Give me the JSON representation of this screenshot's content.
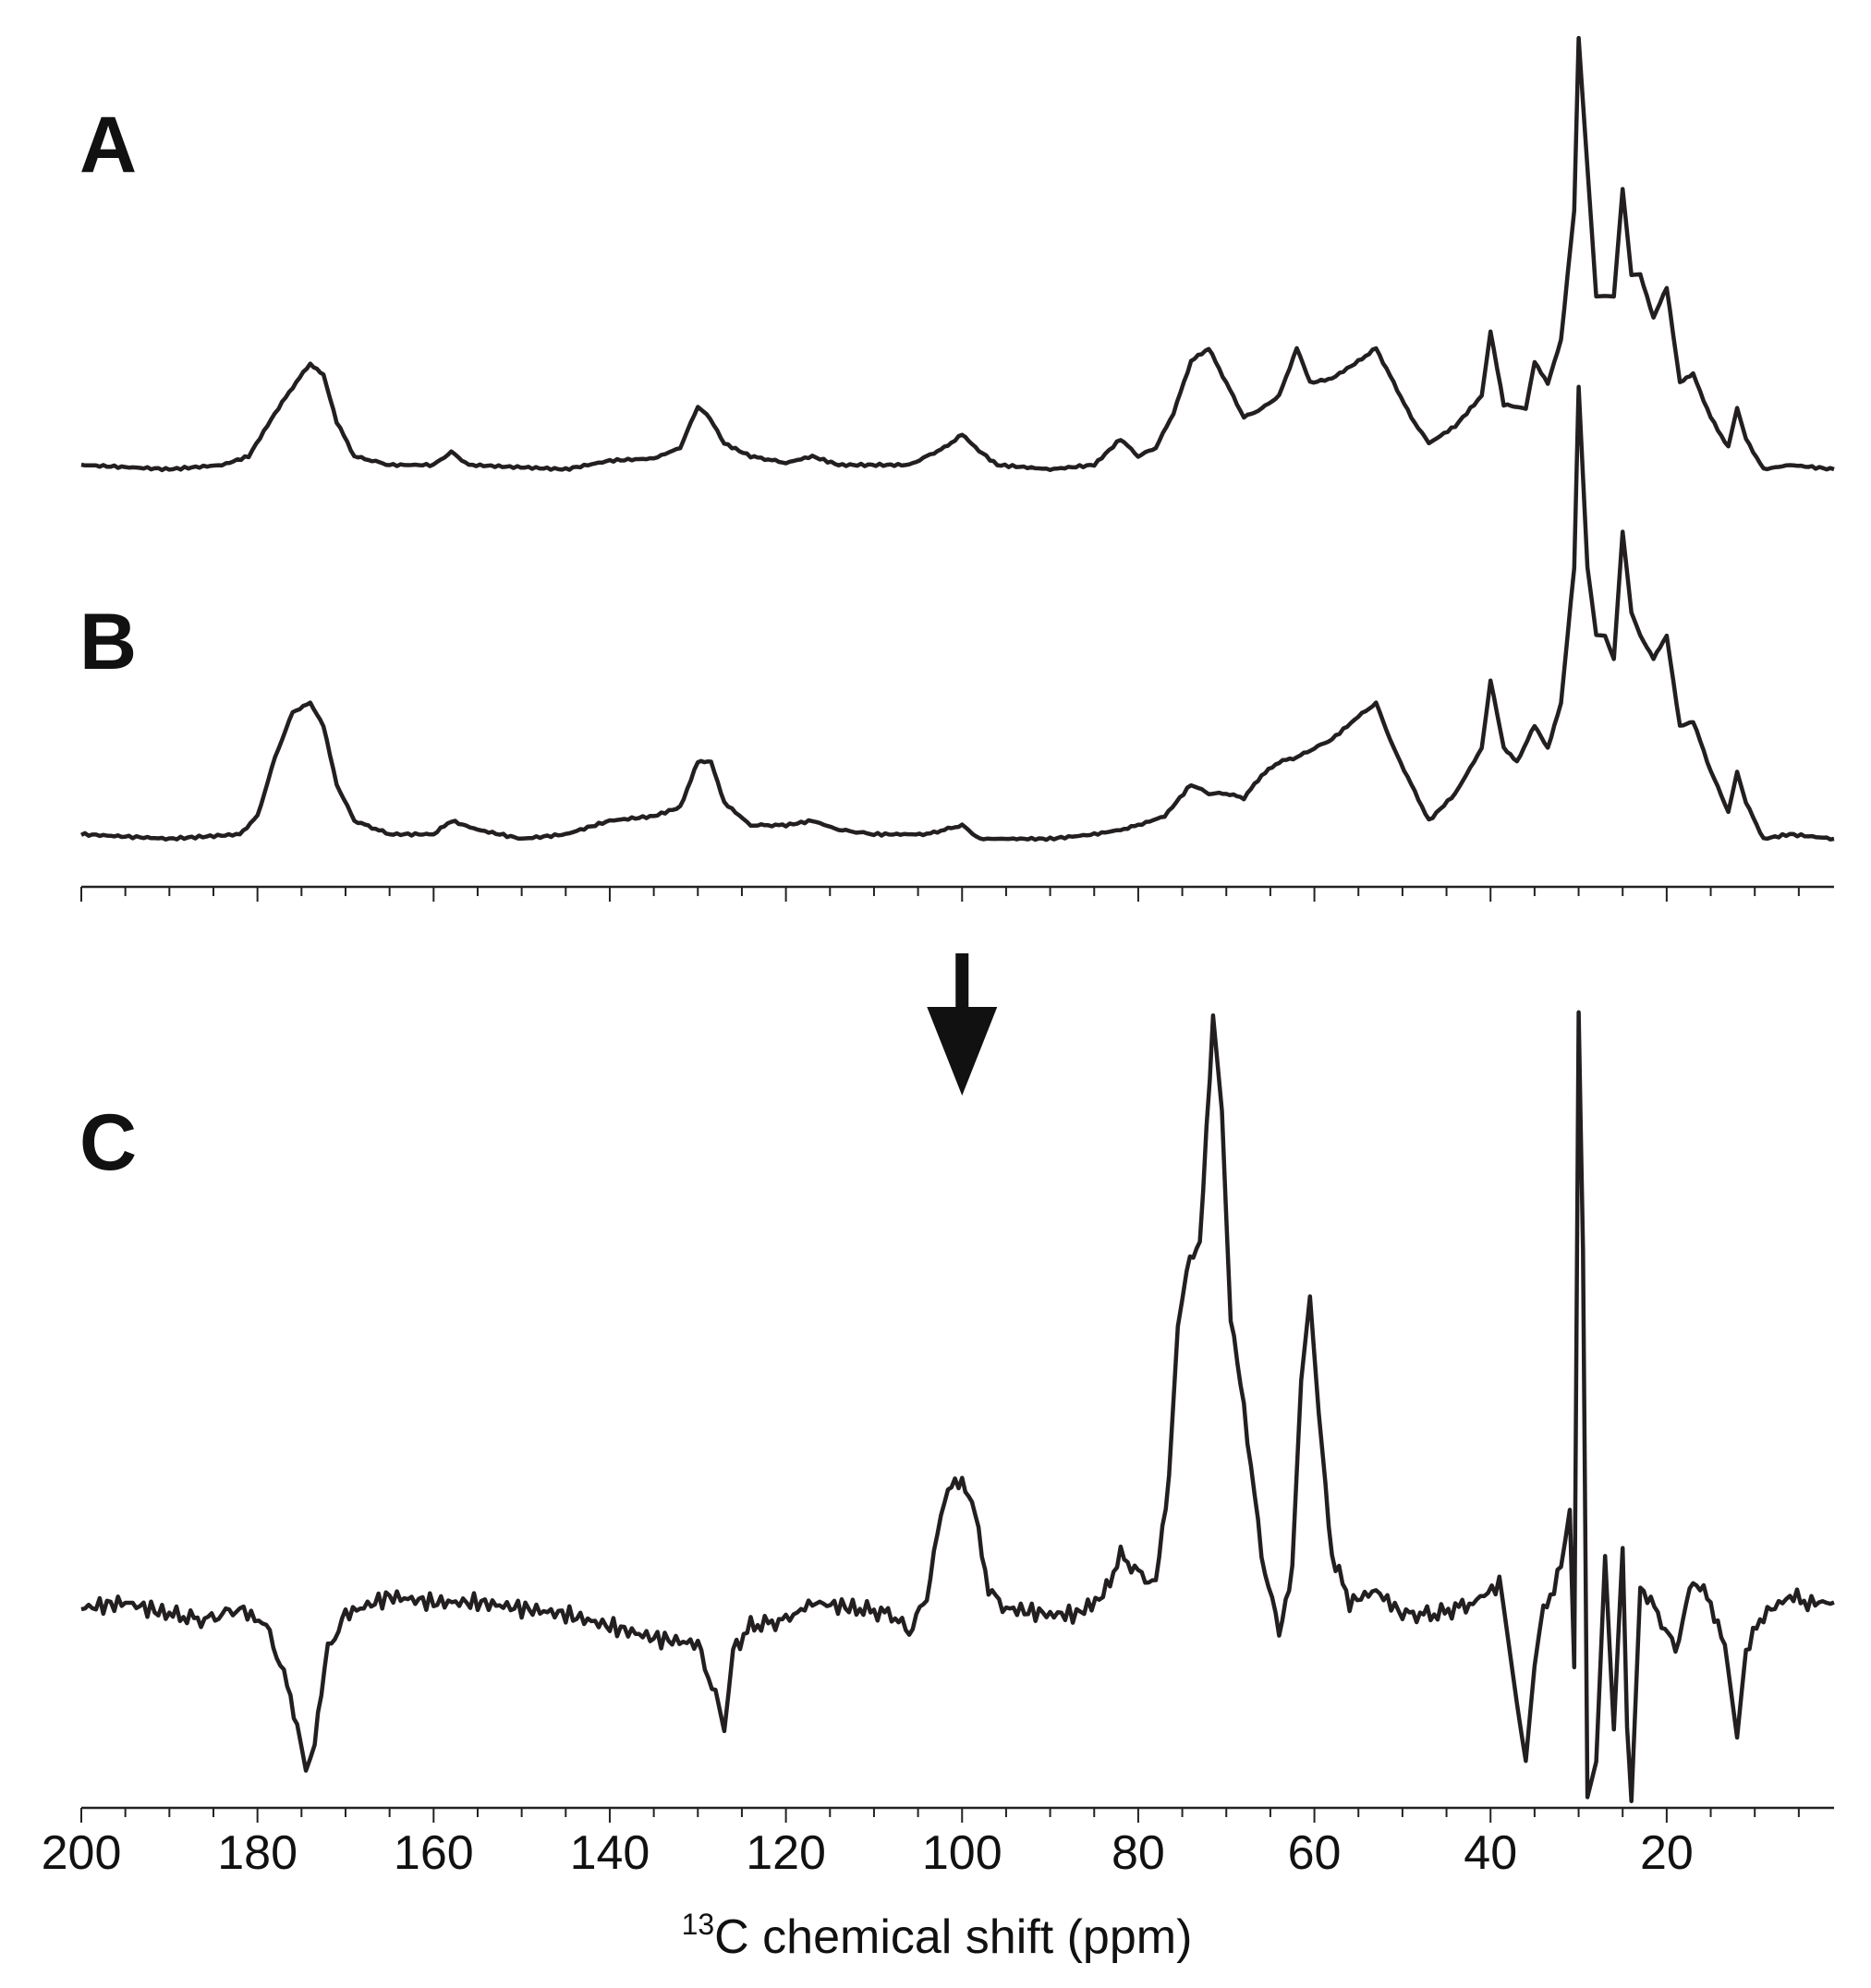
{
  "chart_data": {
    "type": "line",
    "xlabel_superscript": "13",
    "xlabel": "C chemical shift (ppm)",
    "xlim": [
      200,
      1
    ],
    "x_reversed": true,
    "x_ticks": [
      200,
      180,
      160,
      140,
      120,
      100,
      80,
      60,
      40,
      20
    ],
    "x_tick_labels": [
      "200",
      "180",
      "160",
      "140",
      "120",
      "100",
      "80",
      "60",
      "40",
      "20"
    ],
    "minor_tick_step": 5,
    "colors": {
      "trace": "#231f20",
      "axis": "#222222",
      "text": "#111111"
    },
    "annotations": [
      {
        "type": "arrow-down",
        "x": 100,
        "panel": "C"
      }
    ],
    "series": [
      {
        "label": "A",
        "ylim": [
          0,
          1.0
        ],
        "points": [
          [
            200,
            0.01
          ],
          [
            190,
            0.0
          ],
          [
            184,
            0.01
          ],
          [
            181,
            0.03
          ],
          [
            178,
            0.13
          ],
          [
            176,
            0.19
          ],
          [
            174,
            0.245
          ],
          [
            172.5,
            0.22
          ],
          [
            171,
            0.11
          ],
          [
            169,
            0.03
          ],
          [
            165,
            0.01
          ],
          [
            160,
            0.01
          ],
          [
            158,
            0.04
          ],
          [
            156,
            0.01
          ],
          [
            145,
            0.0
          ],
          [
            140,
            0.02
          ],
          [
            135,
            0.025
          ],
          [
            132,
            0.05
          ],
          [
            130,
            0.145
          ],
          [
            129,
            0.13
          ],
          [
            127,
            0.06
          ],
          [
            124,
            0.03
          ],
          [
            120,
            0.015
          ],
          [
            117,
            0.03
          ],
          [
            114,
            0.01
          ],
          [
            106,
            0.01
          ],
          [
            104,
            0.03
          ],
          [
            102,
            0.05
          ],
          [
            100,
            0.08
          ],
          [
            98.5,
            0.05
          ],
          [
            96,
            0.01
          ],
          [
            90,
            0.0
          ],
          [
            85,
            0.01
          ],
          [
            82,
            0.07
          ],
          [
            80,
            0.03
          ],
          [
            78,
            0.05
          ],
          [
            76,
            0.13
          ],
          [
            74,
            0.25
          ],
          [
            72,
            0.28
          ],
          [
            70,
            0.2
          ],
          [
            68,
            0.12
          ],
          [
            66,
            0.14
          ],
          [
            64,
            0.17
          ],
          [
            62,
            0.28
          ],
          [
            60.5,
            0.2
          ],
          [
            58,
            0.21
          ],
          [
            55,
            0.25
          ],
          [
            53,
            0.28
          ],
          [
            51,
            0.2
          ],
          [
            49,
            0.12
          ],
          [
            47,
            0.06
          ],
          [
            44,
            0.1
          ],
          [
            41,
            0.17
          ],
          [
            40,
            0.32
          ],
          [
            38.5,
            0.15
          ],
          [
            36,
            0.14
          ],
          [
            35,
            0.25
          ],
          [
            33.5,
            0.2
          ],
          [
            32,
            0.3
          ],
          [
            30.5,
            0.6
          ],
          [
            30,
            1.0
          ],
          [
            29,
            0.7
          ],
          [
            28,
            0.4
          ],
          [
            27,
            0.4
          ],
          [
            26,
            0.4
          ],
          [
            25,
            0.65
          ],
          [
            24,
            0.45
          ],
          [
            23,
            0.45
          ],
          [
            21.5,
            0.35
          ],
          [
            20,
            0.42
          ],
          [
            18.5,
            0.2
          ],
          [
            17,
            0.22
          ],
          [
            15,
            0.12
          ],
          [
            13,
            0.05
          ],
          [
            12,
            0.14
          ],
          [
            11,
            0.07
          ],
          [
            9,
            0.0
          ],
          [
            6,
            0.01
          ],
          [
            1,
            0.0
          ]
        ]
      },
      {
        "label": "B",
        "ylim": [
          0,
          1.0
        ],
        "points": [
          [
            200,
            0.01
          ],
          [
            190,
            0.0
          ],
          [
            182,
            0.01
          ],
          [
            180,
            0.05
          ],
          [
            178,
            0.18
          ],
          [
            176,
            0.28
          ],
          [
            174,
            0.3
          ],
          [
            172.5,
            0.25
          ],
          [
            171,
            0.12
          ],
          [
            169,
            0.04
          ],
          [
            165,
            0.01
          ],
          [
            160,
            0.01
          ],
          [
            158,
            0.04
          ],
          [
            155,
            0.02
          ],
          [
            150,
            0.0
          ],
          [
            145,
            0.01
          ],
          [
            140,
            0.04
          ],
          [
            135,
            0.05
          ],
          [
            132,
            0.07
          ],
          [
            130,
            0.17
          ],
          [
            128.5,
            0.17
          ],
          [
            127,
            0.08
          ],
          [
            124,
            0.03
          ],
          [
            120,
            0.03
          ],
          [
            117,
            0.04
          ],
          [
            114,
            0.02
          ],
          [
            110,
            0.01
          ],
          [
            104,
            0.01
          ],
          [
            102,
            0.02
          ],
          [
            100,
            0.03
          ],
          [
            98,
            0.0
          ],
          [
            90,
            0.0
          ],
          [
            85,
            0.01
          ],
          [
            82,
            0.02
          ],
          [
            80,
            0.03
          ],
          [
            77,
            0.05
          ],
          [
            74,
            0.12
          ],
          [
            72,
            0.1
          ],
          [
            70,
            0.1
          ],
          [
            68,
            0.09
          ],
          [
            66,
            0.14
          ],
          [
            64,
            0.17
          ],
          [
            62,
            0.18
          ],
          [
            60,
            0.2
          ],
          [
            58,
            0.22
          ],
          [
            55,
            0.27
          ],
          [
            53,
            0.3
          ],
          [
            51,
            0.2
          ],
          [
            49,
            0.12
          ],
          [
            47,
            0.04
          ],
          [
            44,
            0.1
          ],
          [
            41,
            0.2
          ],
          [
            40,
            0.35
          ],
          [
            38.5,
            0.2
          ],
          [
            37,
            0.17
          ],
          [
            35,
            0.25
          ],
          [
            33.5,
            0.2
          ],
          [
            32,
            0.3
          ],
          [
            30.5,
            0.6
          ],
          [
            30,
            1.0
          ],
          [
            29,
            0.6
          ],
          [
            28,
            0.45
          ],
          [
            27,
            0.45
          ],
          [
            26,
            0.4
          ],
          [
            25,
            0.68
          ],
          [
            24,
            0.5
          ],
          [
            23,
            0.45
          ],
          [
            21.5,
            0.4
          ],
          [
            20,
            0.45
          ],
          [
            18.5,
            0.25
          ],
          [
            17,
            0.26
          ],
          [
            15,
            0.15
          ],
          [
            13,
            0.06
          ],
          [
            12,
            0.15
          ],
          [
            11,
            0.08
          ],
          [
            9,
            0.0
          ],
          [
            6,
            0.01
          ],
          [
            1,
            0.0
          ]
        ]
      },
      {
        "label": "C",
        "ylim": [
          -0.32,
          1.0
        ],
        "points": [
          [
            200,
            0.01
          ],
          [
            195,
            0.02
          ],
          [
            190,
            0.0
          ],
          [
            186,
            -0.01
          ],
          [
            182,
            0.01
          ],
          [
            179,
            -0.02
          ],
          [
            177,
            -0.1
          ],
          [
            175.5,
            -0.2
          ],
          [
            174.5,
            -0.27
          ],
          [
            173.5,
            -0.22
          ],
          [
            172,
            -0.06
          ],
          [
            170,
            0.0
          ],
          [
            165,
            0.03
          ],
          [
            160,
            0.02
          ],
          [
            155,
            0.02
          ],
          [
            150,
            0.01
          ],
          [
            145,
            0.0
          ],
          [
            140,
            -0.02
          ],
          [
            135,
            -0.04
          ],
          [
            130,
            -0.05
          ],
          [
            128,
            -0.14
          ],
          [
            127,
            -0.2
          ],
          [
            126,
            -0.06
          ],
          [
            124,
            -0.02
          ],
          [
            120,
            -0.01
          ],
          [
            117,
            0.02
          ],
          [
            112,
            0.01
          ],
          [
            108,
            0.0
          ],
          [
            106,
            -0.03
          ],
          [
            104,
            0.03
          ],
          [
            102,
            0.2
          ],
          [
            100,
            0.23
          ],
          [
            98.5,
            0.18
          ],
          [
            97,
            0.04
          ],
          [
            95,
            0.01
          ],
          [
            90,
            0.0
          ],
          [
            87,
            0.0
          ],
          [
            84,
            0.03
          ],
          [
            82,
            0.1
          ],
          [
            80,
            0.07
          ],
          [
            78,
            0.05
          ],
          [
            76.5,
            0.22
          ],
          [
            75.5,
            0.48
          ],
          [
            74.5,
            0.58
          ],
          [
            73,
            0.62
          ],
          [
            71.5,
            1.0
          ],
          [
            70.5,
            0.85
          ],
          [
            69.5,
            0.5
          ],
          [
            68,
            0.35
          ],
          [
            66,
            0.1
          ],
          [
            64,
            -0.03
          ],
          [
            62.5,
            0.08
          ],
          [
            61.5,
            0.4
          ],
          [
            60.5,
            0.55
          ],
          [
            59.5,
            0.35
          ],
          [
            58,
            0.1
          ],
          [
            56,
            0.02
          ],
          [
            53,
            0.04
          ],
          [
            50,
            0.0
          ],
          [
            46,
            0.0
          ],
          [
            42,
            0.02
          ],
          [
            39,
            0.05
          ],
          [
            38,
            -0.05
          ],
          [
            37,
            -0.15
          ],
          [
            36,
            -0.25
          ],
          [
            35,
            -0.1
          ],
          [
            34,
            0.0
          ],
          [
            32,
            0.08
          ],
          [
            31,
            0.17
          ],
          [
            30.5,
            -0.1
          ],
          [
            30,
            1.0
          ],
          [
            29.5,
            0.6
          ],
          [
            29,
            -0.32
          ],
          [
            28,
            -0.25
          ],
          [
            27,
            0.1
          ],
          [
            26,
            -0.2
          ],
          [
            25,
            0.1
          ],
          [
            24.5,
            -0.2
          ],
          [
            24,
            -0.32
          ],
          [
            23,
            0.05
          ],
          [
            21,
            0.0
          ],
          [
            19,
            -0.06
          ],
          [
            17,
            0.06
          ],
          [
            15,
            0.02
          ],
          [
            13,
            -0.08
          ],
          [
            12,
            -0.2
          ],
          [
            11,
            -0.06
          ],
          [
            9,
            0.0
          ],
          [
            6,
            0.03
          ],
          [
            4,
            0.02
          ],
          [
            1,
            0.02
          ]
        ]
      }
    ]
  }
}
